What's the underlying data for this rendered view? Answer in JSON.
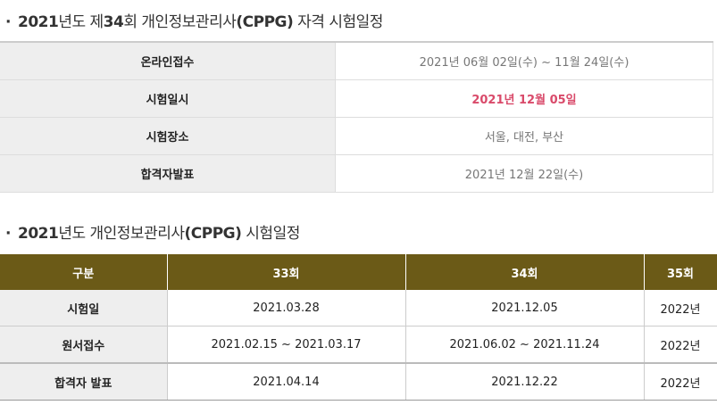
{
  "section1": {
    "bullet": "·",
    "title_year": "2021",
    "title_mid1": "년도 제",
    "title_round": "34",
    "title_mid2": "회 개인정보관리사",
    "title_code": "(CPPG)",
    "title_end": " 자격 시험일정",
    "rows": [
      {
        "label": "온라인접수",
        "value": "2021년 06월 02일(수) ~ 11월 24일(수)"
      },
      {
        "label": "시험일시",
        "value": "2021년 12월 05일"
      },
      {
        "label": "시험장소",
        "value": "서울, 대전, 부산"
      },
      {
        "label": "합격자발표",
        "value": "2021년 12월 22일(수)"
      }
    ]
  },
  "section2": {
    "bullet": "·",
    "title_year": "2021",
    "title_mid": "년도 개인정보관리사",
    "title_code": "(CPPG)",
    "title_end": " 시험일정",
    "headers": [
      "구분",
      "33회",
      "34회",
      "35회"
    ],
    "rows": [
      {
        "label": "시험일",
        "c33": "2021.03.28",
        "c34": "2021.12.05",
        "c35": "2022년"
      },
      {
        "label": "원서접수",
        "c33": "2021.02.15 ~ 2021.03.17",
        "c34": "2021.06.02 ~ 2021.11.24",
        "c35": "2022년"
      },
      {
        "label": "합격자 발표",
        "c33": "2021.04.14",
        "c34": "2021.12.22",
        "c35": "2022년"
      }
    ]
  },
  "colors": {
    "header_bg": "#6b5a17",
    "highlight": "#d94a6a",
    "label_bg": "#eeeeee"
  }
}
